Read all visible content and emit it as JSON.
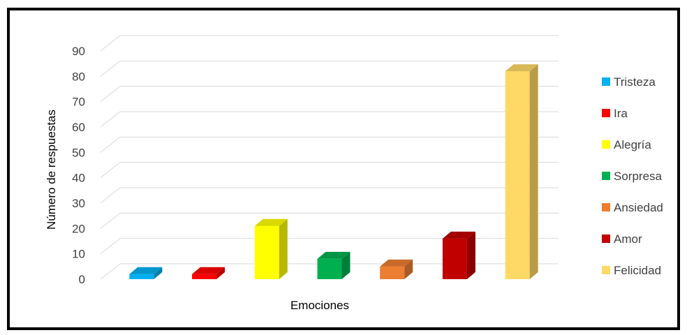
{
  "chart_data": {
    "type": "bar",
    "style": "3d-column",
    "categories": [
      "Tristeza",
      "Ira",
      "Alegría",
      "Sorpresa",
      "Ansiedad",
      "Amor",
      "Felicidad"
    ],
    "values": [
      2,
      2,
      21,
      8,
      5,
      16,
      82
    ],
    "colors": [
      "#00B0F0",
      "#FF0000",
      "#FFFF00",
      "#00B050",
      "#ED7D31",
      "#C00000",
      "#FFD966"
    ],
    "title": "",
    "xlabel": "Emociones",
    "ylabel": "Número de respuestas",
    "ylim": [
      0,
      90
    ],
    "yticks": [
      "0",
      "10",
      "20",
      "30",
      "40",
      "50",
      "60",
      "70",
      "80",
      "90"
    ],
    "grid": true,
    "legend_position": "right",
    "legend": [
      "Tristeza",
      "Ira",
      "Alegría",
      "Sorpresa",
      "Ansiedad",
      "Amor",
      "Felicidad"
    ]
  }
}
